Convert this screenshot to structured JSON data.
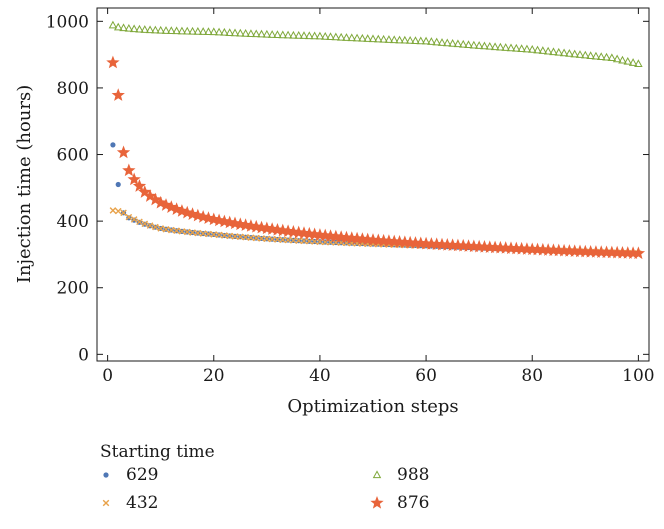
{
  "chart_data": {
    "type": "scatter",
    "title": "",
    "xlabel": "Optimization steps",
    "ylabel": "Injection time (hours)",
    "xlim": [
      -2,
      102
    ],
    "ylim": [
      -20,
      1040
    ],
    "xticks": [
      0,
      20,
      40,
      60,
      80,
      100
    ],
    "yticks": [
      0,
      200,
      400,
      600,
      800,
      1000
    ],
    "grid": false,
    "legend": {
      "title": "Starting time",
      "placement": "bottom"
    },
    "series": [
      {
        "name": "629",
        "marker": "circle",
        "color": "#4f77b5",
        "model": {
          "x0": 1,
          "y0": 629,
          "x_end": 100,
          "y_end": 303,
          "overrides": [
            [
              1,
              629
            ],
            [
              2,
              510
            ],
            [
              3,
              425
            ],
            [
              4,
              410
            ],
            [
              5,
              403
            ]
          ]
        }
      },
      {
        "name": "432",
        "marker": "cross",
        "color": "#e8a24a",
        "model": {
          "x0": 1,
          "y0": 432,
          "x_end": 100,
          "y_end": 303,
          "overrides": [
            [
              1,
              432
            ],
            [
              2,
              430
            ],
            [
              3,
              425
            ],
            [
              4,
              412
            ],
            [
              5,
              405
            ]
          ]
        }
      },
      {
        "name": "988",
        "marker": "triangle",
        "color": "#7fa83a",
        "model": {
          "x0": 1,
          "y0": 988,
          "x_end": 100,
          "y_end": 872,
          "overrides": [
            [
              1,
              988
            ],
            [
              2,
              982
            ],
            [
              3,
              980
            ],
            [
              20,
              968
            ],
            [
              40,
              955
            ],
            [
              60,
              940
            ],
            [
              80,
              915
            ],
            [
              95,
              890
            ],
            [
              100,
              872
            ]
          ]
        }
      },
      {
        "name": "876",
        "marker": "star",
        "color": "#e8643a",
        "model": {
          "x0": 1,
          "y0": 876,
          "x_end": 100,
          "y_end": 303,
          "overrides": [
            [
              1,
              876
            ],
            [
              2,
              778
            ],
            [
              3,
              606
            ],
            [
              4,
              552
            ],
            [
              5,
              525
            ],
            [
              6,
              505
            ],
            [
              7,
              487
            ],
            [
              8,
              475
            ],
            [
              10,
              455
            ],
            [
              15,
              425
            ],
            [
              20,
              405
            ],
            [
              30,
              378
            ],
            [
              40,
              358
            ],
            [
              50,
              343
            ],
            [
              60,
              332
            ],
            [
              70,
              323
            ],
            [
              80,
              315
            ],
            [
              90,
              308
            ],
            [
              100,
              303
            ]
          ]
        }
      }
    ]
  }
}
